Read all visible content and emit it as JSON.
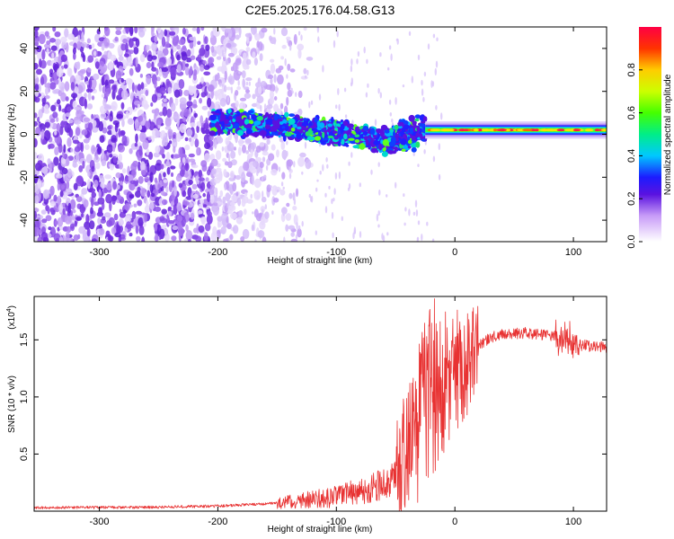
{
  "title": "C2E5.2025.176.04.58.G13",
  "chart_data": [
    {
      "type": "heatmap",
      "xlabel": "Height of straight line (km)",
      "ylabel": "Frequency (Hz)",
      "xlim": [
        -355,
        128
      ],
      "ylim": [
        -50,
        50
      ],
      "xticks": [
        -300,
        -200,
        -100,
        0,
        100
      ],
      "yticks": [
        -40,
        -20,
        0,
        20,
        40
      ],
      "colorbar": {
        "label": "Normalized spectral amplitude",
        "range": [
          0,
          1
        ],
        "ticks": [
          "0.0",
          "0.2",
          "0.4",
          "0.6",
          "0.8"
        ]
      },
      "ridge": {
        "x": [
          -205,
          -150,
          -100,
          -60,
          -30,
          0,
          50,
          128
        ],
        "y": [
          6,
          4,
          1,
          -3,
          1,
          2,
          2,
          2
        ]
      }
    },
    {
      "type": "line",
      "xlabel": "Height of straight line (km)",
      "ylabel": "SNR (10 * v/v)",
      "y_multiplier": "(x10",
      "y_multiplier_exp": "4",
      "xlim": [
        -355,
        128
      ],
      "ylim": [
        0,
        18800
      ],
      "xticks": [
        -300,
        -200,
        -100,
        0,
        100
      ],
      "yticks": [
        0.5,
        1.0,
        1.5
      ],
      "yticks_labels": [
        "0.5",
        "1.0",
        "1.5"
      ],
      "series_color": "#e83232",
      "envelope": {
        "x": [
          -355,
          -250,
          -200,
          -150,
          -100,
          -70,
          -55,
          -45,
          -35,
          -25,
          -15,
          -8,
          0,
          10,
          20,
          30,
          40,
          60,
          80,
          95,
          100,
          110,
          128
        ],
        "y": [
          300,
          350,
          450,
          700,
          1300,
          2000,
          2600,
          4000,
          6500,
          9500,
          11000,
          11500,
          12000,
          13000,
          14500,
          15200,
          15500,
          15600,
          15400,
          15200,
          14600,
          14500,
          14300
        ]
      }
    }
  ]
}
